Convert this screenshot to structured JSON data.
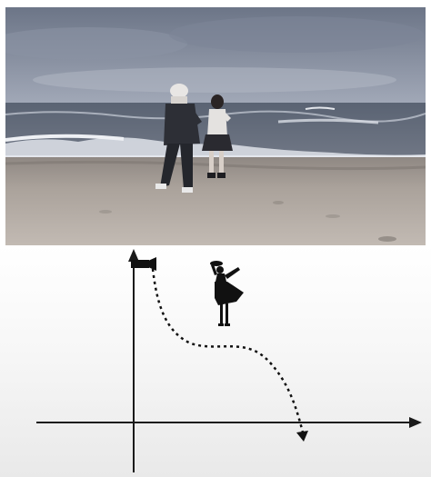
{
  "figure": {
    "top_panel": {
      "subject": "beach-photo"
    },
    "bottom_panel": {
      "subject": "camera-path-diagram"
    }
  },
  "colors": {
    "sky_top": "#6f7788",
    "sky_bottom": "#9aa2b2",
    "sea": "#5d6676",
    "foam": "#dfe3ea",
    "sand_light": "#b9b1aa",
    "sand_dark": "#8d8681",
    "ink": "#1a1a1a",
    "path": "#111111"
  }
}
